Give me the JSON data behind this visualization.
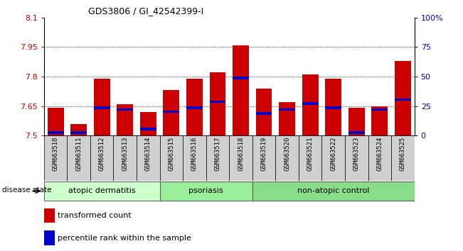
{
  "title": "GDS3806 / GI_42542399-I",
  "samples": [
    "GSM663510",
    "GSM663511",
    "GSM663512",
    "GSM663513",
    "GSM663514",
    "GSM663515",
    "GSM663516",
    "GSM663517",
    "GSM663518",
    "GSM663519",
    "GSM663520",
    "GSM663521",
    "GSM663522",
    "GSM663523",
    "GSM663524",
    "GSM663525"
  ],
  "red_values": [
    7.64,
    7.56,
    7.79,
    7.66,
    7.62,
    7.73,
    7.79,
    7.82,
    7.96,
    7.74,
    7.67,
    7.81,
    7.79,
    7.64,
    7.65,
    7.88
  ],
  "blue_values": [
    7.515,
    7.515,
    7.642,
    7.632,
    7.532,
    7.622,
    7.642,
    7.672,
    7.792,
    7.612,
    7.632,
    7.662,
    7.642,
    7.515,
    7.632,
    7.682
  ],
  "ymin": 7.5,
  "ymax": 8.1,
  "y_ticks_left": [
    7.5,
    7.65,
    7.8,
    7.95,
    8.1
  ],
  "y_ticks_right_vals": [
    0,
    25,
    50,
    75,
    100
  ],
  "y_ticks_right_labels": [
    "0",
    "25",
    "50",
    "75",
    "100%"
  ],
  "bar_color": "#cc0000",
  "blue_color": "#0000cc",
  "groups": [
    {
      "label": "atopic dermatitis",
      "start": 0,
      "end": 5,
      "color": "#ccffcc"
    },
    {
      "label": "psoriasis",
      "start": 5,
      "end": 9,
      "color": "#99ee99"
    },
    {
      "label": "non-atopic control",
      "start": 9,
      "end": 16,
      "color": "#88dd88"
    }
  ],
  "legend_red": "transformed count",
  "legend_blue": "percentile rank within the sample",
  "disease_state_label": "disease state",
  "bar_width": 0.7,
  "bg_plot": "#ffffff",
  "xtick_bg": "#d0d0d0"
}
